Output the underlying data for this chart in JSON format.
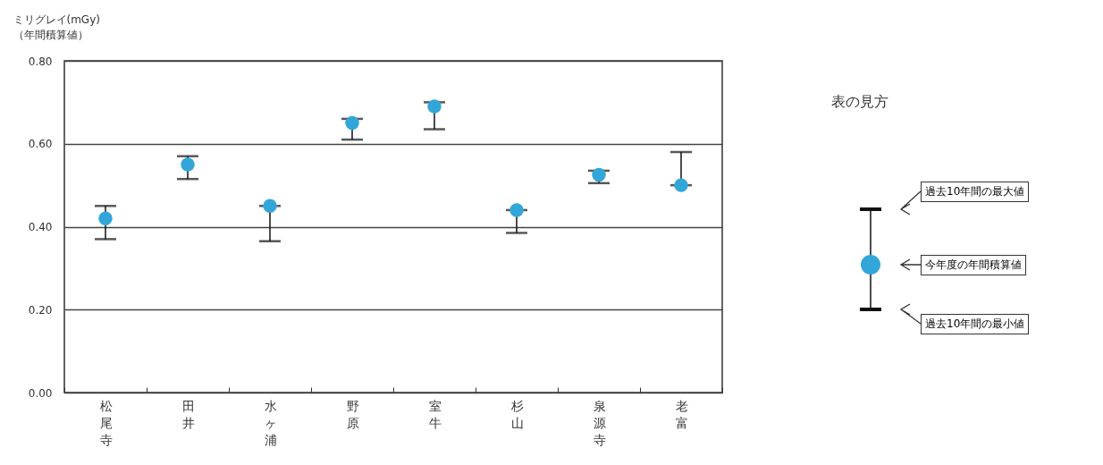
{
  "chart_data": {
    "type": "scatter",
    "ylabel": "ミリグレイ(mGy)\n（年間積算値）",
    "categories": [
      "松尾寺",
      "田井",
      "水ヶ浦",
      "野原",
      "室牛",
      "杉山",
      "泉源寺",
      "老富"
    ],
    "series": [
      {
        "color": "#33a6d9",
        "values": [
          0.42,
          0.55,
          0.45,
          0.65,
          0.69,
          0.44,
          0.525,
          0.5
        ],
        "errors": [
          [
            0.37,
            0.45
          ],
          [
            0.515,
            0.57
          ],
          [
            0.365,
            0.45
          ],
          [
            0.61,
            0.66
          ],
          [
            0.635,
            0.7
          ],
          [
            0.385,
            0.44
          ],
          [
            0.505,
            0.535
          ],
          [
            0.5,
            0.58
          ]
        ]
      }
    ],
    "ylim": [
      0,
      0.8
    ],
    "yticks": [
      {
        "value": 0,
        "label": "0.00"
      },
      {
        "value": 0.2,
        "label": "0.20"
      },
      {
        "value": 0.4,
        "label": "0.40"
      },
      {
        "value": 0.6,
        "label": "0.60"
      },
      {
        "value": 0.8,
        "label": "0.80"
      }
    ],
    "grid": "y",
    "marker": "circle",
    "annotations": [
      "表の見方",
      "過去10年間の最大値",
      "今年度の年間積算値",
      "過去10年間の最小値"
    ]
  }
}
